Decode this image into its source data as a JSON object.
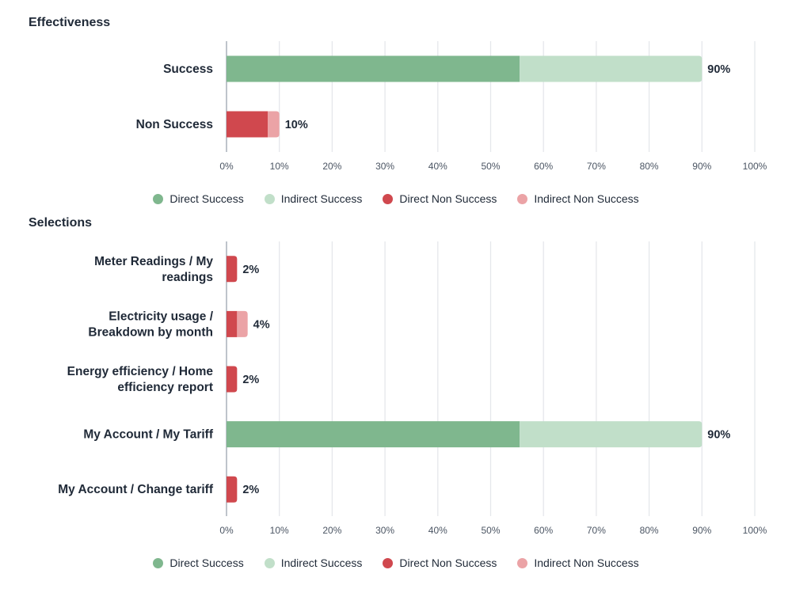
{
  "colors": {
    "direct_success": "#7fb78e",
    "indirect_success": "#c1dfc9",
    "direct_non_success": "#d0484e",
    "indirect_non_success": "#eba3a6"
  },
  "legend": [
    "Direct Success",
    "Indirect Success",
    "Direct Non Success",
    "Indirect Non Success"
  ],
  "chart_data": [
    {
      "type": "bar",
      "orientation": "horizontal",
      "stacked": true,
      "title": "Effectiveness",
      "xlim": [
        0,
        100
      ],
      "x_ticks": [
        "0%",
        "10%",
        "20%",
        "30%",
        "40%",
        "50%",
        "60%",
        "70%",
        "80%",
        "90%",
        "100%"
      ],
      "grid": true,
      "legend_position": "bottom",
      "categories": [
        "Success",
        "Non Success"
      ],
      "series": [
        {
          "name": "Direct Success",
          "values": [
            55.5,
            0
          ]
        },
        {
          "name": "Indirect Success",
          "values": [
            34.5,
            0
          ]
        },
        {
          "name": "Direct Non Success",
          "values": [
            0,
            7.8
          ]
        },
        {
          "name": "Indirect Non Success",
          "values": [
            0,
            2.2
          ]
        }
      ],
      "data_labels": [
        "90%",
        "10%"
      ]
    },
    {
      "type": "bar",
      "orientation": "horizontal",
      "stacked": true,
      "title": "Selections",
      "xlim": [
        0,
        100
      ],
      "x_ticks": [
        "0%",
        "10%",
        "20%",
        "30%",
        "40%",
        "50%",
        "60%",
        "70%",
        "80%",
        "90%",
        "100%"
      ],
      "grid": true,
      "legend_position": "bottom",
      "categories": [
        [
          "Meter Readings / My",
          "readings"
        ],
        [
          "Electricity usage /",
          "Breakdown by month"
        ],
        [
          "Energy efficiency / Home",
          "efficiency report"
        ],
        [
          "My Account / My Tariff"
        ],
        [
          "My Account / Change tariff"
        ]
      ],
      "series": [
        {
          "name": "Direct Success",
          "values": [
            0,
            0,
            0,
            55.5,
            0
          ]
        },
        {
          "name": "Indirect Success",
          "values": [
            0,
            0,
            0,
            34.5,
            0
          ]
        },
        {
          "name": "Direct Non Success",
          "values": [
            2,
            2,
            2,
            0,
            2
          ]
        },
        {
          "name": "Indirect Non Success",
          "values": [
            0,
            2,
            0,
            0,
            0
          ]
        }
      ],
      "data_labels": [
        "2%",
        "4%",
        "2%",
        "90%",
        "2%"
      ]
    }
  ]
}
